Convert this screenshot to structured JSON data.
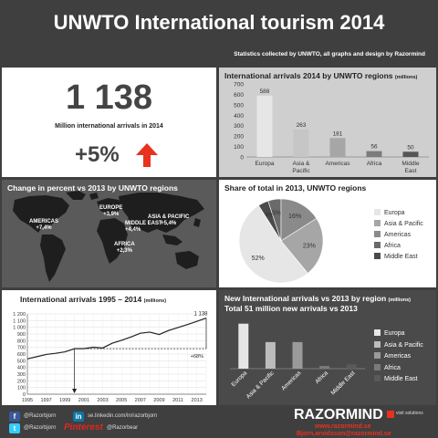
{
  "header": {
    "title": "UNWTO International tourism 2014",
    "subtitle": "Statistics collected by UNWTO, all graphs and design by Razormind"
  },
  "kpi": {
    "value": "1 138",
    "label": "Million international arrivals in 2014",
    "change": "+5%",
    "arrow_color": "#e8321e"
  },
  "world_map": {
    "title": "Change in percent vs 2013 by UNWTO regions",
    "labels": [
      {
        "name": "AMERICAS",
        "value": "+7,4%"
      },
      {
        "name": "EUROPE",
        "value": "+3,9%"
      },
      {
        "name": "MIDDLE EAST",
        "value": "+4,4%"
      },
      {
        "name": "ASIA & PACIFIC",
        "value": "+5,4%"
      },
      {
        "name": "AFRICA",
        "value": "+2,3%"
      }
    ]
  },
  "footer": {
    "facebook": "@Razorbjorn",
    "linkedin": "se.linkedin.com/in/razorbjorn",
    "twitter": "@Razorbjorn",
    "pinterest": "Pinterest",
    "pinterest_handle": "@Razorbear",
    "brand": "RAZORMIND",
    "brand_tag": "visit solutions",
    "website": "www.razormind.se",
    "email": "Bjorn.arvidsson@razormind.se"
  },
  "chart_data": [
    {
      "type": "bar",
      "title": "International arrivals 2014 by UNWTO regions",
      "unit": "(millions)",
      "categories": [
        "Europa",
        "Asia & Pacific",
        "Americas",
        "Africa",
        "Middle East"
      ],
      "category_lines": [
        [
          "Europa"
        ],
        [
          "Asia &",
          "Pacific"
        ],
        [
          "Americas"
        ],
        [
          "Africa"
        ],
        [
          "Middle",
          "East"
        ]
      ],
      "values": [
        588,
        263,
        181,
        56,
        50
      ],
      "ylim": [
        0,
        700
      ],
      "yticks": [
        0,
        100,
        200,
        300,
        400,
        500,
        600,
        700
      ],
      "colors": [
        "#e6e6e6",
        "#c6c6c6",
        "#a6a6a6",
        "#7c7c7c",
        "#555555"
      ]
    },
    {
      "type": "pie",
      "title": "Share of total in 2013, UNWTO regions",
      "categories": [
        "Europa",
        "Asia & Pacific",
        "Americas",
        "Africa",
        "Middle East"
      ],
      "values": [
        52,
        23,
        16,
        5,
        4
      ],
      "labels": [
        "52%",
        "23%",
        "16%",
        "5%",
        "4%"
      ],
      "colors": [
        "#e6e6e6",
        "#a6a6a6",
        "#8a8a8a",
        "#6a6a6a",
        "#4a4a4a"
      ],
      "legend": "right"
    },
    {
      "type": "line",
      "title": "International arrivals 1995 – 2014",
      "unit": "(millions)",
      "x": [
        1995,
        1996,
        1997,
        1998,
        1999,
        2000,
        2001,
        2002,
        2003,
        2004,
        2005,
        2006,
        2007,
        2008,
        2009,
        2010,
        2011,
        2012,
        2013,
        2014
      ],
      "values": [
        528,
        561,
        594,
        611,
        633,
        680,
        680,
        702,
        691,
        761,
        806,
        855,
        911,
        928,
        892,
        952,
        996,
        1040,
        1088,
        1138
      ],
      "xticks": [
        "1995",
        "1997",
        "1999",
        "2001",
        "2003",
        "2005",
        "2007",
        "2009",
        "2011",
        "2013"
      ],
      "yticks": [
        "0",
        "100",
        "200",
        "300",
        "400",
        "500",
        "600",
        "700",
        "800",
        "900",
        "1 000",
        "1 100",
        "1 200"
      ],
      "ylim": [
        0,
        1200
      ],
      "end_label": "1 138",
      "annotation": "+68%",
      "grid": true
    },
    {
      "type": "bar",
      "title": "New International arrivals vs 2013 by region",
      "unit": "(millions)",
      "subtitle": "Total 51 million new arrivals vs 2013",
      "categories": [
        "Europa",
        "Asia & Pacific",
        "Americas",
        "Africa",
        "Middle East"
      ],
      "values": [
        22,
        13,
        13,
        1.3,
        2.1
      ],
      "ylim": [
        0,
        25
      ],
      "colors": [
        "#e6e6e6",
        "#bcbcbc",
        "#9a9a9a",
        "#7a7a7a",
        "#5a5a5a"
      ],
      "legend": "right"
    }
  ]
}
